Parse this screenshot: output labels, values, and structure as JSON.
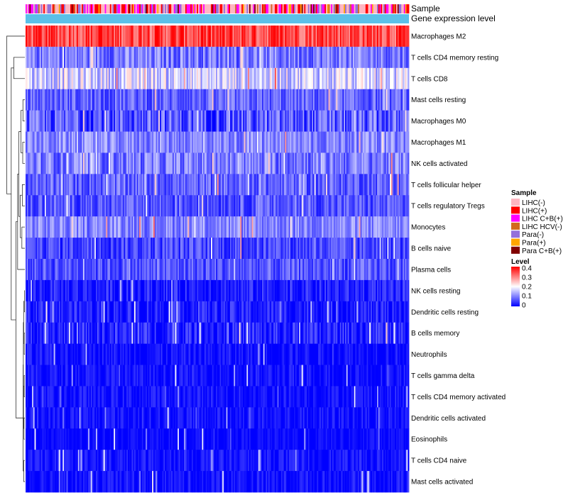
{
  "chart_data": {
    "type": "heatmap",
    "title": "",
    "annotations": [
      {
        "key": "sample",
        "label": "Sample"
      },
      {
        "key": "level_bar",
        "label": "Gene expression level",
        "color": "#5bc0e8"
      }
    ],
    "rows": [
      {
        "label": "Macrophages M2",
        "mean": 0.34,
        "spread": 0.07
      },
      {
        "label": "T cells CD4 memory resting",
        "mean": 0.09,
        "spread": 0.06
      },
      {
        "label": "T cells CD8",
        "mean": 0.16,
        "spread": 0.07
      },
      {
        "label": "Mast cells resting",
        "mean": 0.07,
        "spread": 0.05
      },
      {
        "label": "Macrophages M0",
        "mean": 0.06,
        "spread": 0.07
      },
      {
        "label": "Macrophages M1",
        "mean": 0.1,
        "spread": 0.05
      },
      {
        "label": "NK cells activated",
        "mean": 0.09,
        "spread": 0.06
      },
      {
        "label": "T cells follicular helper",
        "mean": 0.07,
        "spread": 0.05
      },
      {
        "label": "T cells regulatory  Tregs",
        "mean": 0.06,
        "spread": 0.05
      },
      {
        "label": "Monocytes",
        "mean": 0.1,
        "spread": 0.05
      },
      {
        "label": "B cells naive",
        "mean": 0.05,
        "spread": 0.05
      },
      {
        "label": "Plasma cells",
        "mean": 0.06,
        "spread": 0.05
      },
      {
        "label": "NK cells resting",
        "mean": 0.02,
        "spread": 0.04
      },
      {
        "label": "Dendritic cells resting",
        "mean": 0.02,
        "spread": 0.04
      },
      {
        "label": "B cells memory",
        "mean": 0.02,
        "spread": 0.05
      },
      {
        "label": "Neutrophils",
        "mean": 0.01,
        "spread": 0.03
      },
      {
        "label": "T cells gamma delta",
        "mean": 0.01,
        "spread": 0.03
      },
      {
        "label": "T cells CD4 memory activated",
        "mean": 0.01,
        "spread": 0.03
      },
      {
        "label": "Dendritic cells activated",
        "mean": 0.01,
        "spread": 0.03
      },
      {
        "label": "Eosinophils",
        "mean": 0.005,
        "spread": 0.02
      },
      {
        "label": "T cells CD4 naive",
        "mean": 0.01,
        "spread": 0.03
      },
      {
        "label": "Mast cells activated",
        "mean": 0.01,
        "spread": 0.03
      }
    ],
    "n_samples": 300,
    "value_range": [
      0,
      0.4
    ],
    "color_scale": [
      "#0000ff",
      "#ffffff",
      "#ff0000"
    ],
    "legend": {
      "placement": "right",
      "sample": {
        "title": "Sample",
        "items": [
          {
            "label": "LIHC(-)",
            "color": "#ffb6c1",
            "weight": 0.38
          },
          {
            "label": "LIHC(+)",
            "color": "#ff0000",
            "weight": 0.2
          },
          {
            "label": "LIHC C+B(+)",
            "color": "#ff00ff",
            "weight": 0.14
          },
          {
            "label": "LIHC HCV(-)",
            "color": "#d2691e",
            "weight": 0.06
          },
          {
            "label": "Para(-)",
            "color": "#9370db",
            "weight": 0.12
          },
          {
            "label": "Para(+)",
            "color": "#ffa500",
            "weight": 0.05
          },
          {
            "label": "Para C+B(+)",
            "color": "#800000",
            "weight": 0.05
          }
        ]
      },
      "level": {
        "title": "Level",
        "ticks": [
          "0.4",
          "0.3",
          "0.2",
          "0.1",
          "0"
        ]
      }
    }
  }
}
